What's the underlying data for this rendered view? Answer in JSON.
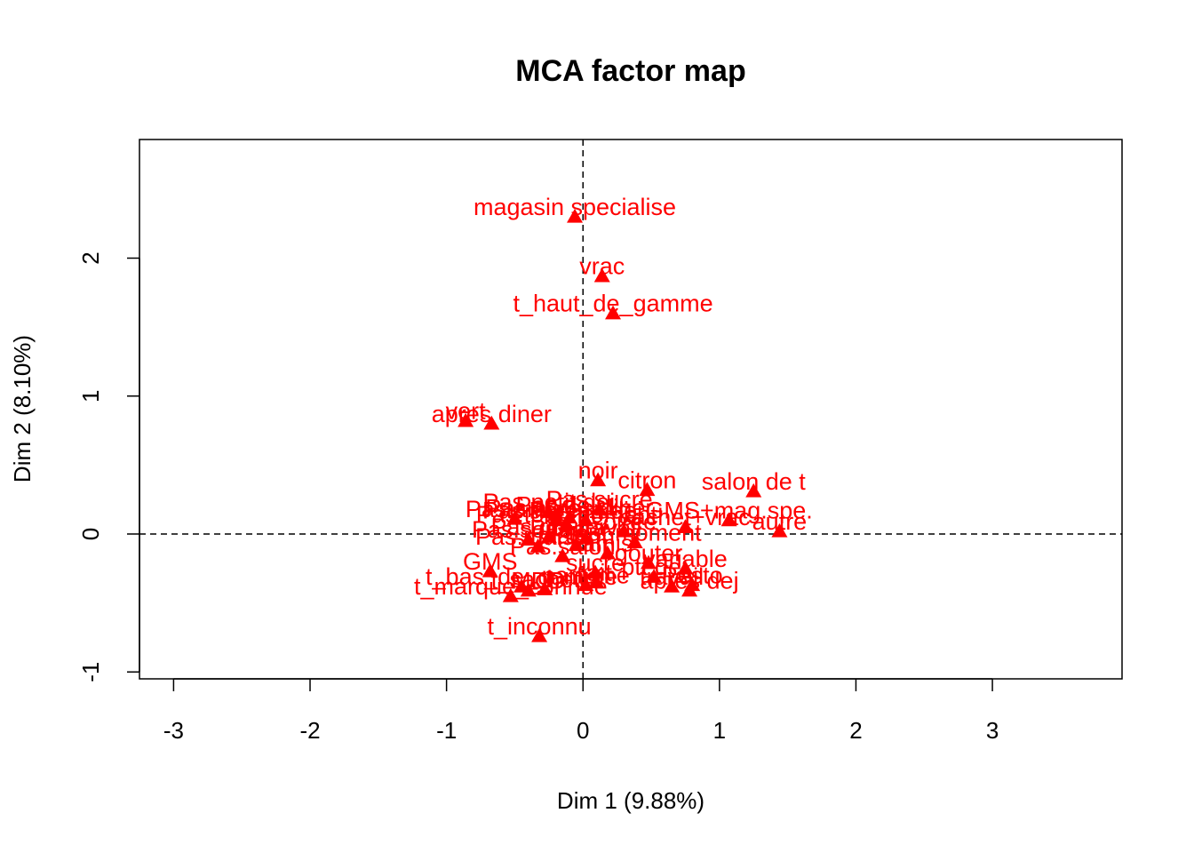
{
  "chart_data": {
    "type": "scatter",
    "title": "MCA factor map",
    "xlabel": "Dim 1 (9.88%)",
    "ylabel": "Dim 2 (8.10%)",
    "xlim": [
      -3.25,
      3.95
    ],
    "ylim": [
      -1.05,
      2.86
    ],
    "xticks": [
      -3,
      -2,
      -1,
      0,
      1,
      2,
      3
    ],
    "xtick_labels": [
      "-3",
      "-2",
      "-1",
      "0",
      "1",
      "2",
      "3"
    ],
    "yticks": [
      -1,
      0,
      1,
      2
    ],
    "ytick_labels": [
      "-1",
      "0",
      "1",
      "2"
    ],
    "reference_lines": {
      "x": 0,
      "y": 0,
      "style": "dashed"
    },
    "marker": "triangle",
    "color": "#ff0000",
    "points": [
      {
        "label": "magasin specialise",
        "x": -0.06,
        "y": 2.3
      },
      {
        "label": "vrac",
        "x": 0.14,
        "y": 1.87
      },
      {
        "label": "t_haut_de_gamme",
        "x": 0.22,
        "y": 1.6
      },
      {
        "label": "vert",
        "x": -0.86,
        "y": 0.82
      },
      {
        "label": "apres diner",
        "x": -0.67,
        "y": 0.8
      },
      {
        "label": "noir",
        "x": 0.11,
        "y": 0.39
      },
      {
        "label": "citron",
        "x": 0.47,
        "y": 0.32
      },
      {
        "label": "salon de t",
        "x": 1.25,
        "y": 0.31
      },
      {
        "label": "Pas.petit.dej",
        "x": -0.25,
        "y": 0.16
      },
      {
        "label": "Pas.sucre",
        "x": 0.12,
        "y": 0.18
      },
      {
        "label": "Pas.amis",
        "x": -0.5,
        "y": 0.11
      },
      {
        "label": "Pas.dej",
        "x": -0.2,
        "y": 0.14
      },
      {
        "label": "Pas.apres.diner",
        "x": -0.1,
        "y": 0.12
      },
      {
        "label": "Pas.ptt.dej",
        "x": 0.02,
        "y": 0.1
      },
      {
        "label": "Pas.apres.dej",
        "x": -0.2,
        "y": 0.1
      },
      {
        "label": "Pas.tout.moment",
        "x": -0.12,
        "y": 0.07
      },
      {
        "label": "sachet+vrac",
        "x": 0.75,
        "y": 0.05
      },
      {
        "label": "GMS+mag.spe.",
        "x": 1.07,
        "y": 0.1
      },
      {
        "label": "Pas.soiree",
        "x": -0.4,
        "y": -0.04
      },
      {
        "label": "Pas.gouter",
        "x": -0.25,
        "y": -0.02
      },
      {
        "label": "Pas.travail",
        "x": 0.02,
        "y": -0.03
      },
      {
        "label": "soiree",
        "x": 0.3,
        "y": 0.02
      },
      {
        "label": "tout moment",
        "x": 0.38,
        "y": -0.06
      },
      {
        "label": "autre",
        "x": 1.44,
        "y": 0.02
      },
      {
        "label": "Pas.maison",
        "x": -0.33,
        "y": -0.09
      },
      {
        "label": "Pas.salon",
        "x": -0.15,
        "y": -0.16
      },
      {
        "label": "maison",
        "x": -0.05,
        "y": -0.08
      },
      {
        "label": "amis",
        "x": 0.18,
        "y": -0.14
      },
      {
        "label": "gouter",
        "x": 0.48,
        "y": -0.21
      },
      {
        "label": "GMS",
        "x": -0.68,
        "y": -0.27
      },
      {
        "label": "sucre",
        "x": 0.09,
        "y": -0.28
      },
      {
        "label": "ptt dej",
        "x": 0.52,
        "y": -0.31
      },
      {
        "label": "variable",
        "x": 0.75,
        "y": -0.25
      },
      {
        "label": "t_bas_de_gamme",
        "x": -0.45,
        "y": -0.38
      },
      {
        "label": "parfume",
        "x": 0.02,
        "y": -0.37
      },
      {
        "label": "travail",
        "x": 0.65,
        "y": -0.38
      },
      {
        "label": "t_marque_connue",
        "x": -0.53,
        "y": -0.45
      },
      {
        "label": "t_MDD",
        "x": -0.4,
        "y": -0.41
      },
      {
        "label": "sachet",
        "x": -0.28,
        "y": -0.4
      },
      {
        "label": "lait",
        "x": 0.1,
        "y": -0.35
      },
      {
        "label": "apres dej",
        "x": 0.78,
        "y": -0.41
      },
      {
        "label": "Pesto",
        "x": 0.8,
        "y": -0.37
      },
      {
        "label": "t_inconnu",
        "x": -0.32,
        "y": -0.74
      }
    ]
  }
}
